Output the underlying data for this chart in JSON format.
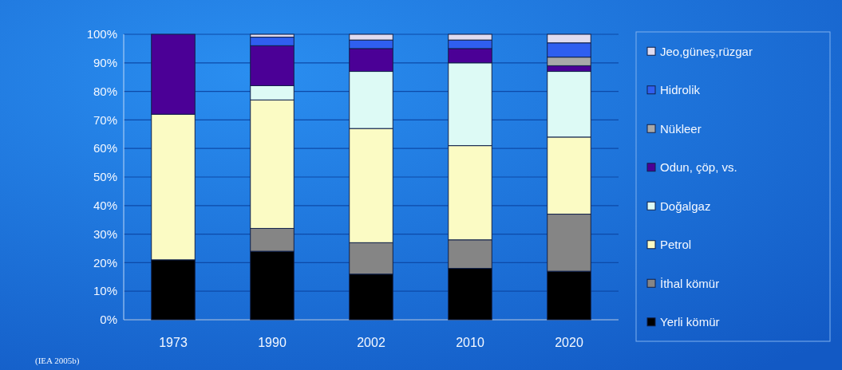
{
  "chart_data": {
    "type": "bar",
    "stacked": true,
    "categories": [
      "1973",
      "1990",
      "2002",
      "2010",
      "2020"
    ],
    "series": [
      {
        "name": "Yerli kömür",
        "color": "#000000",
        "values": [
          21,
          24,
          16,
          18,
          17
        ]
      },
      {
        "name": "İthal kömür",
        "color": "#858585",
        "values": [
          0,
          8,
          11,
          10,
          20
        ]
      },
      {
        "name": "Petrol",
        "color": "#fbfbc4",
        "values": [
          51,
          45,
          40,
          33,
          27
        ]
      },
      {
        "name": "Doğalgaz",
        "color": "#ddfaf5",
        "values": [
          0,
          5,
          20,
          29,
          23
        ]
      },
      {
        "name": "Odun, çöp, vs.",
        "color": "#4b0096",
        "values": [
          28,
          14,
          8,
          5,
          2
        ]
      },
      {
        "name": "Nükleer",
        "color": "#a8a8a8",
        "values": [
          0,
          0,
          0,
          0,
          3
        ]
      },
      {
        "name": "Hidrolik",
        "color": "#2f5ff0",
        "values": [
          0,
          3,
          3,
          3,
          5
        ]
      },
      {
        "name": "Jeo,güneş,rüzgar",
        "color": "#e0dcf0",
        "values": [
          0,
          1,
          2,
          2,
          3
        ]
      }
    ],
    "ylim": [
      0,
      100
    ],
    "yticks": [
      {
        "value": 0,
        "label": "0%"
      },
      {
        "value": 10,
        "label": "10%"
      },
      {
        "value": 20,
        "label": "20%"
      },
      {
        "value": 30,
        "label": "30%"
      },
      {
        "value": 40,
        "label": "40%"
      },
      {
        "value": 50,
        "label": "50%"
      },
      {
        "value": 60,
        "label": "60%"
      },
      {
        "value": 70,
        "label": "70%"
      },
      {
        "value": 80,
        "label": "80%"
      },
      {
        "value": 90,
        "label": "90%"
      },
      {
        "value": 100,
        "label": "100%"
      }
    ],
    "grid": "y",
    "legend": "right",
    "annotations": [
      "(IEA 2005b)"
    ]
  }
}
